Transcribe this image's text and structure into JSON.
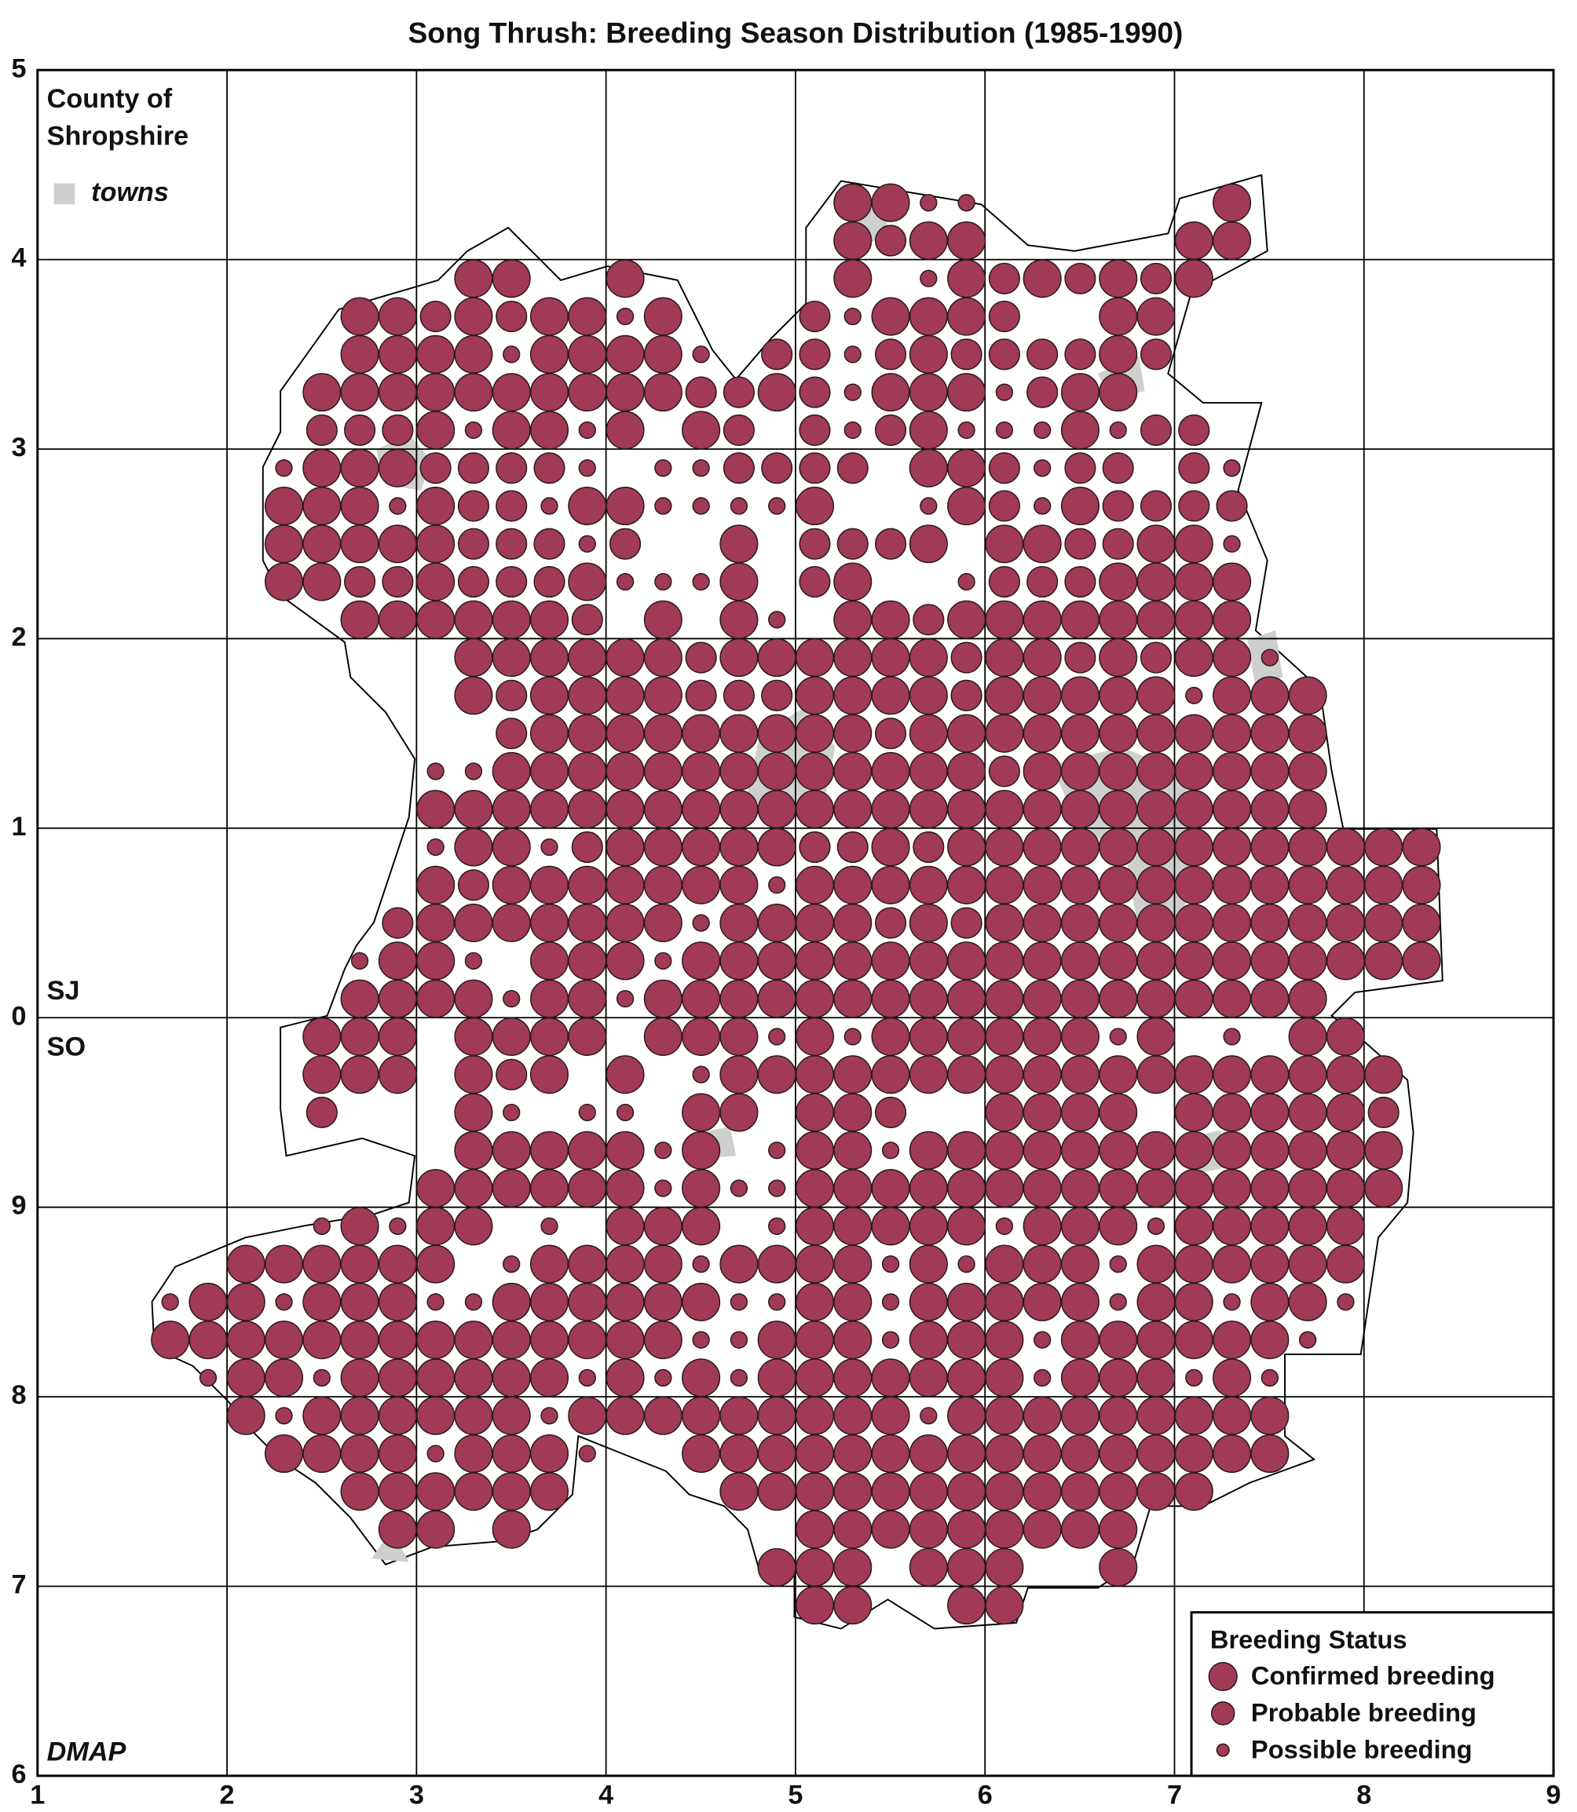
{
  "title": "Song Thrush: Breeding Season Distribution (1985-1990)",
  "county_label": [
    "County of",
    "Shropshire"
  ],
  "towns_label": "towns",
  "grid_labels": {
    "north": "SJ",
    "south": "SO"
  },
  "credit": "DMAP",
  "x_ticks": [
    1,
    2,
    3,
    4,
    5,
    6,
    7,
    8,
    9
  ],
  "y_ticks": [
    5,
    4,
    3,
    2,
    1,
    0,
    9,
    8,
    7,
    6
  ],
  "legend": {
    "title": "Breeding Status",
    "items": [
      {
        "code": "C",
        "label": "Confirmed breeding"
      },
      {
        "code": "P",
        "label": "Probable breeding"
      },
      {
        "code": "S",
        "label": "Possible breeding"
      }
    ]
  },
  "tetrads": [
    "..................CCSS......C.....",
    "..................CPCC.....CC.....",
    "........CC..C.....C.SCPCPCPC......",
    ".....CCPCPCCSC...PSCCCP..CC.......",
    ".....CCCCSCCCCS.PPSPCPPPPCP.......",
    "....CCCCCCCCCCPPCPSCCCSPCC........",
    "....PPPCSCCSC.CP.PSPCSSSCSPP......",
    "...SCCCPPPPS.SSPPPP.CCPSPP.PS.....",
    "...CCCSCPPSCCSSSSC..SCPSCPPPP.....",
    "...CCCCCPPPSP..C.PPPC.CCPPCCS.....",
    "...CCPPCPPPCSSSC.PC..SPPPCCCC.....",
    ".....CCCCCCP.C.CS.CCPCCCCCCCC.....",
    "........CCCCCCPCCCCCCPCCPCPCCS....",
    "........CPCCCCPPPCCCCPCCCCCSCCC...",
    ".........PCCCCCCCCCPCCCCCCCCCCC...",
    ".......SSCCCCCCCCCCCCCPCCCCCCCC...",
    ".......CCCCCCCCCCCCCCCCCCCCCCCC...",
    ".......SCCSPCCCCCPPCPCCCCCCCCCCCCC",
    ".......CPCCCCCCCSCCCCCCCCCCCCCCCCC",
    "......PCCCCCCCSCCCCPCPCCCCCCCCCCCC",
    ".....SCCS.CCCSCCCCCCCCCCCCCCCCCCCC",
    ".....CCCCSCCSCCCCCCCCCCCCCCCCCC...",
    "....CCC.CCCC.CCCSCSCCCCCCSC.S.CC..",
    "....CCC.CPC.C.SCCCCCCCCCCCCCCCCCC.",
    "....P...CS.SS.CC.CCP..CCCC.CCCCCP.",
    "........CCCCCSC.SCCSCCCCCCCCCCCCC.",
    ".......CCCCCCSCSSCCCCCCCCCCCCCCCC.",
    "....SCSCC.S.CCC.SCCCCCSCCCSCCCCC..",
    "..CCCCCC.SCCCCSCCCCSCSCCCSCCCCCC..",
    "SCCSCCCSSCCCCCCSSCCSCCCCCSCCSCCS..",
    "CCCCCCCCCCCCCCSSCCCSCCCSCCCCCCS...",
    ".SCCSCCCCCCSCSCSCCCCCCCSCCCSCS....",
    "..CSCCCCCCSCCCCCCCCCSCCCCCCCCC....",
    "...CCCCSCCCS..CCCCCCCCCCCCCCCC....",
    ".....CCCCCC....CCCCCCCCCCCCC......",
    "......CC.C.......CCCCCCCCC........",
    "................CCC.CCC..C........",
    ".................CC..CC..........."
  ]
}
